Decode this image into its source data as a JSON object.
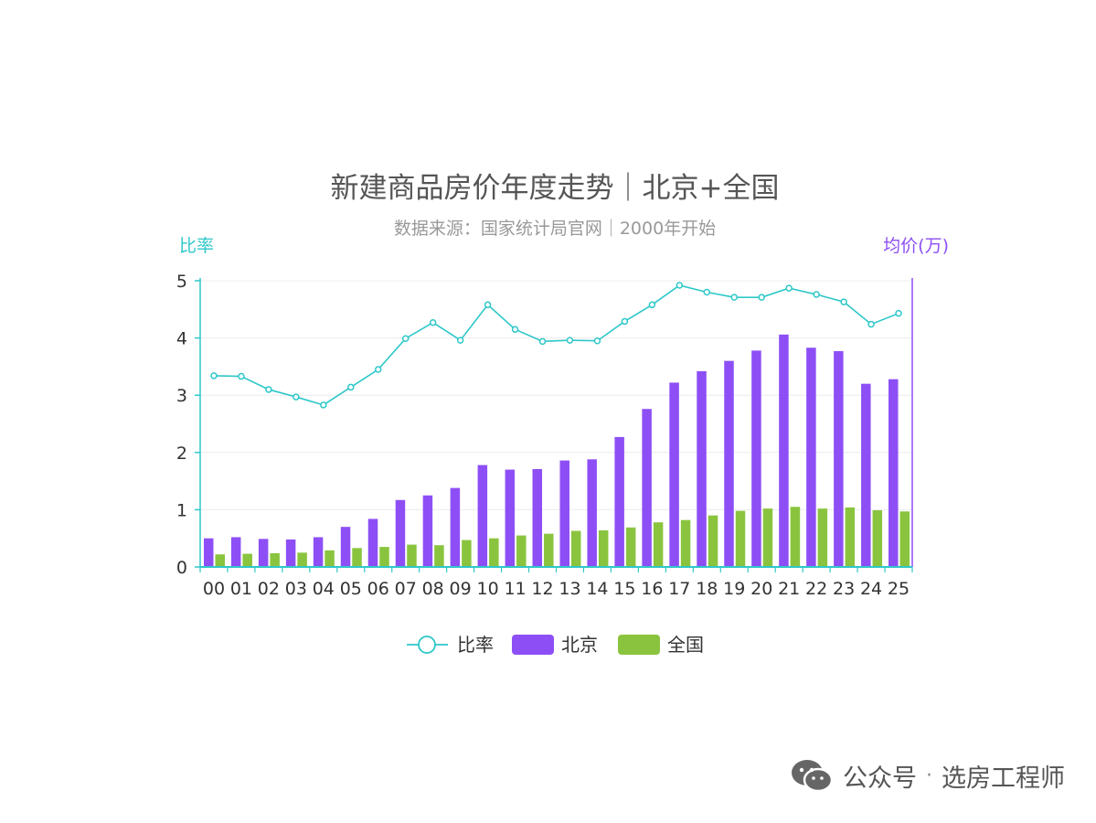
{
  "chart_data": {
    "type": "bar+line",
    "title": "新建商品房价年度走势｜北京+全国",
    "subtitle": "数据来源：国家统计局官网｜2000年开始",
    "y_left_label": "比率",
    "y_right_label": "均价(万)",
    "ylim": [
      0,
      5
    ],
    "yticks": [
      "0",
      "1",
      "2",
      "3",
      "4",
      "5"
    ],
    "categories": [
      "00",
      "01",
      "02",
      "03",
      "04",
      "05",
      "06",
      "07",
      "08",
      "09",
      "10",
      "11",
      "12",
      "13",
      "14",
      "15",
      "16",
      "17",
      "18",
      "19",
      "20",
      "21",
      "22",
      "23",
      "24",
      "25"
    ],
    "series": [
      {
        "name": "比率",
        "type": "line",
        "color": "#2ec7c9",
        "values": [
          3.34,
          3.33,
          3.1,
          2.97,
          2.83,
          3.14,
          3.45,
          3.99,
          4.27,
          3.96,
          4.58,
          4.15,
          3.94,
          3.96,
          3.95,
          4.29,
          4.58,
          4.92,
          4.8,
          4.71,
          4.71,
          4.87,
          4.76,
          4.63,
          4.24,
          4.43
        ]
      },
      {
        "name": "北京",
        "type": "bar",
        "color": "#8d4ff5",
        "values": [
          0.5,
          0.52,
          0.49,
          0.48,
          0.52,
          0.7,
          0.84,
          1.17,
          1.25,
          1.38,
          1.78,
          1.7,
          1.71,
          1.86,
          1.88,
          2.27,
          2.76,
          3.22,
          3.42,
          3.6,
          3.78,
          4.06,
          3.83,
          3.77,
          3.2,
          3.28
        ]
      },
      {
        "name": "全国",
        "type": "bar",
        "color": "#8ac43f",
        "values": [
          0.22,
          0.23,
          0.24,
          0.25,
          0.29,
          0.33,
          0.35,
          0.39,
          0.38,
          0.47,
          0.5,
          0.55,
          0.58,
          0.63,
          0.64,
          0.69,
          0.78,
          0.82,
          0.9,
          0.98,
          1.02,
          1.05,
          1.02,
          1.04,
          0.99,
          0.97
        ]
      }
    ],
    "legend": [
      "比率",
      "北京",
      "全国"
    ],
    "legend_position": "bottom-center"
  },
  "watermark": {
    "icon": "wechat-icon",
    "label": "公众号",
    "separator": "·",
    "account": "选房工程师"
  }
}
